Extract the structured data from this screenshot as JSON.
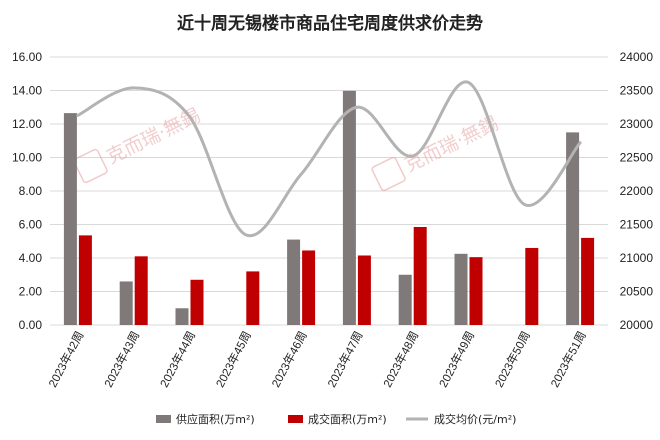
{
  "chart_data": {
    "type": "bar",
    "title": "近十周无锡楼市商品住宅周度供求价走势",
    "categories": [
      "2023年42周",
      "2023年43周",
      "2023年44周",
      "2023年45周",
      "2023年46周",
      "2023年47周",
      "2023年48周",
      "2023年49周",
      "2023年50周",
      "2023年51周"
    ],
    "series": [
      {
        "name": "供应面积(万m²)",
        "kind": "bar",
        "axis": "left",
        "color": "#7f7a79",
        "values": [
          12.65,
          2.6,
          1.0,
          0,
          5.1,
          13.98,
          3.0,
          4.25,
          0,
          11.5
        ]
      },
      {
        "name": "成交面积(万m²)",
        "kind": "bar",
        "axis": "left",
        "color": "#c00000",
        "values": [
          5.35,
          4.1,
          2.7,
          3.2,
          4.45,
          4.15,
          5.85,
          4.05,
          4.6,
          5.2
        ]
      },
      {
        "name": "成交均价(元/m²)",
        "kind": "line",
        "axis": "right",
        "color": "#b3b3b3",
        "values": [
          23130,
          23540,
          23110,
          21350,
          22250,
          23250,
          22520,
          23620,
          21800,
          22720
        ]
      }
    ],
    "y_left": {
      "min": 0,
      "max": 16,
      "step": 2,
      "ticks": [
        "0.00",
        "2.00",
        "4.00",
        "6.00",
        "8.00",
        "10.00",
        "12.00",
        "14.00",
        "16.00"
      ]
    },
    "y_right": {
      "min": 20000,
      "max": 24000,
      "step": 500,
      "ticks": [
        "20000",
        "20500",
        "21000",
        "21500",
        "22000",
        "22500",
        "23000",
        "23500",
        "24000"
      ]
    },
    "grid": true,
    "legend_position": "bottom"
  },
  "watermark": {
    "logo_text": "克而瑞·無錫"
  }
}
